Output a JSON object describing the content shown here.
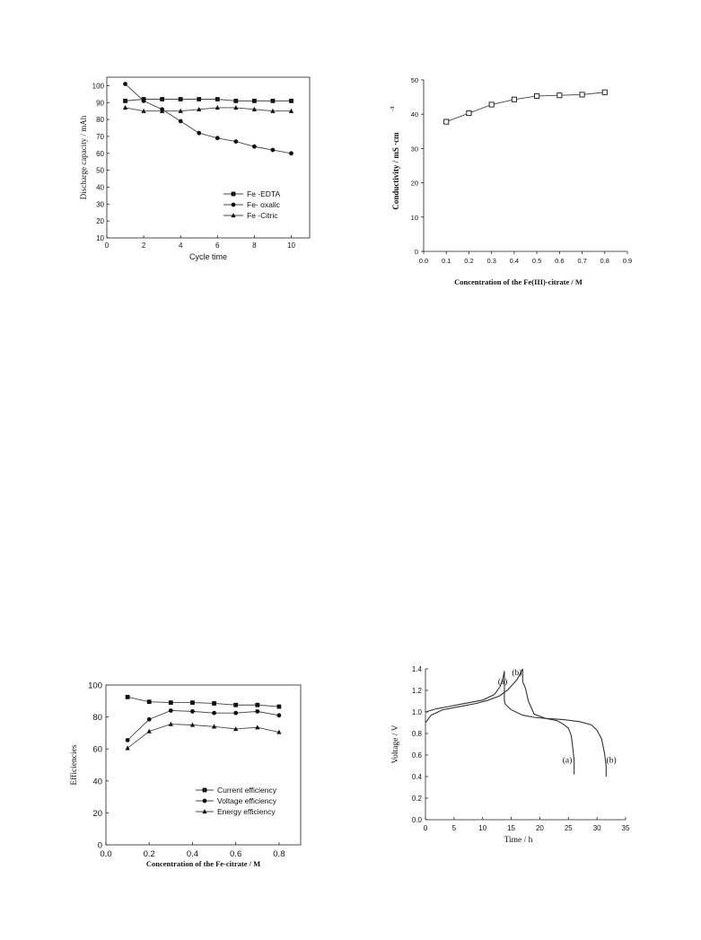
{
  "chart_data": [
    {
      "type": "line",
      "xlabel": "Cycle time",
      "ylabel": "Discharge capacity / mAh",
      "xlim": [
        0,
        11
      ],
      "ylim": [
        10,
        105
      ],
      "xticks": [
        0,
        2,
        4,
        6,
        8,
        10
      ],
      "yticks": [
        10,
        20,
        30,
        40,
        50,
        60,
        70,
        80,
        90,
        100
      ],
      "legend_position": "bottom-right",
      "series": [
        {
          "name": "Fe -EDTA",
          "marker": "square",
          "x": [
            1,
            2,
            3,
            4,
            5,
            6,
            7,
            8,
            9,
            10
          ],
          "y": [
            91,
            92,
            92,
            92,
            92,
            92,
            91,
            91,
            91,
            91
          ]
        },
        {
          "name": "Fe- oxalic",
          "marker": "circle",
          "x": [
            1,
            2,
            3,
            4,
            5,
            6,
            7,
            8,
            9,
            10
          ],
          "y": [
            101,
            91,
            86,
            79,
            72,
            69,
            67,
            64,
            62,
            60
          ]
        },
        {
          "name": "Fe -Citric",
          "marker": "triangle",
          "x": [
            1,
            2,
            3,
            4,
            5,
            6,
            7,
            8,
            9,
            10
          ],
          "y": [
            87,
            85,
            85,
            85,
            86,
            87,
            87,
            86,
            85,
            85
          ]
        }
      ]
    },
    {
      "type": "line",
      "xlabel": "Concentration  of the Fe(III)-citrate / M",
      "ylabel_main": "Conductivity / mS ·cm",
      "ylabel_sup": "-1",
      "xlim": [
        0,
        0.9
      ],
      "ylim": [
        0,
        50
      ],
      "xticks": [
        "0.0",
        "0.1",
        "0.2",
        "0.3",
        "0.4",
        "0.5",
        "0.6",
        "0.7",
        "0.8",
        "0.9"
      ],
      "yticks": [
        "0",
        "10",
        "20",
        "30",
        "40",
        "50"
      ],
      "series": [
        {
          "marker": "open-square",
          "x": [
            0.1,
            0.2,
            0.3,
            0.4,
            0.5,
            0.6,
            0.7,
            0.8
          ],
          "y": [
            37.8,
            40.3,
            42.8,
            44.3,
            45.3,
            45.5,
            45.7,
            46.4
          ]
        }
      ]
    },
    {
      "type": "line",
      "xlabel": "Concentration  of the Fe-citrate / M",
      "ylabel": "Efficiencies",
      "xlim": [
        0,
        0.9
      ],
      "ylim": [
        0,
        100
      ],
      "xticks": [
        "0.0",
        "0.2",
        "0.4",
        "0.6",
        "0.8"
      ],
      "yticks": [
        "0",
        "20",
        "40",
        "60",
        "80",
        "100"
      ],
      "legend_position": "bottom-right",
      "series": [
        {
          "name": "Current efficiency",
          "marker": "square",
          "x": [
            0.1,
            0.2,
            0.3,
            0.4,
            0.5,
            0.6,
            0.7,
            0.8
          ],
          "y": [
            92.5,
            89.5,
            89,
            89,
            88.5,
            87.5,
            87.5,
            86.5
          ]
        },
        {
          "name": "Voltage efficiency",
          "marker": "circle",
          "x": [
            0.1,
            0.2,
            0.3,
            0.4,
            0.5,
            0.6,
            0.7,
            0.8
          ],
          "y": [
            65.5,
            78.5,
            84,
            83.5,
            82.5,
            82.5,
            83.5,
            81
          ]
        },
        {
          "name": "Energy efficiency",
          "marker": "triangle",
          "x": [
            0.1,
            0.2,
            0.3,
            0.4,
            0.5,
            0.6,
            0.7,
            0.8
          ],
          "y": [
            60.5,
            71,
            75.5,
            75,
            74,
            72.5,
            73.5,
            70.5
          ]
        }
      ]
    },
    {
      "type": "line",
      "xlabel": "Time / h",
      "ylabel": "Voltage / V",
      "xlim": [
        0,
        35
      ],
      "ylim": [
        0,
        1.4
      ],
      "xticks": [
        "0",
        "5",
        "10",
        "15",
        "20",
        "25",
        "30",
        "35"
      ],
      "yticks": [
        "0.0",
        "0.2",
        "0.4",
        "0.6",
        "0.8",
        "1.0",
        "1.2",
        "1.4"
      ],
      "series": [
        {
          "label": "(a)",
          "x": [
            0,
            2,
            4,
            6,
            8,
            10,
            12,
            13,
            13.5,
            13.8,
            13.8,
            14,
            15,
            17,
            19,
            21,
            23,
            24,
            25,
            25.5,
            25.8,
            26,
            26,
            26
          ],
          "y": [
            1.0,
            1.03,
            1.05,
            1.07,
            1.09,
            1.11,
            1.16,
            1.23,
            1.3,
            1.38,
            1.1,
            1.07,
            1.02,
            0.97,
            0.95,
            0.94,
            0.92,
            0.89,
            0.85,
            0.78,
            0.65,
            0.55,
            0.48,
            0.42
          ]
        },
        {
          "label": "(b)",
          "x": [
            0,
            1,
            3,
            5,
            7,
            9,
            11,
            13,
            14.5,
            16,
            16.8,
            17,
            17,
            17.5,
            18,
            19,
            21,
            24,
            27,
            29,
            30,
            30.8,
            31.3,
            31.6,
            31.6
          ],
          "y": [
            0.9,
            0.97,
            1.02,
            1.04,
            1.06,
            1.08,
            1.11,
            1.15,
            1.21,
            1.3,
            1.38,
            1.4,
            1.28,
            1.22,
            1.1,
            0.98,
            0.94,
            0.93,
            0.91,
            0.88,
            0.83,
            0.75,
            0.62,
            0.5,
            0.4
          ]
        }
      ],
      "annotations": [
        {
          "text": "(a)",
          "x": 13.5,
          "y": 1.26
        },
        {
          "text": "(b)",
          "x": 16.0,
          "y": 1.34
        },
        {
          "text": "(a)",
          "x": 24.8,
          "y": 0.53
        },
        {
          "text": "(b)",
          "x": 32.5,
          "y": 0.53
        }
      ]
    }
  ]
}
